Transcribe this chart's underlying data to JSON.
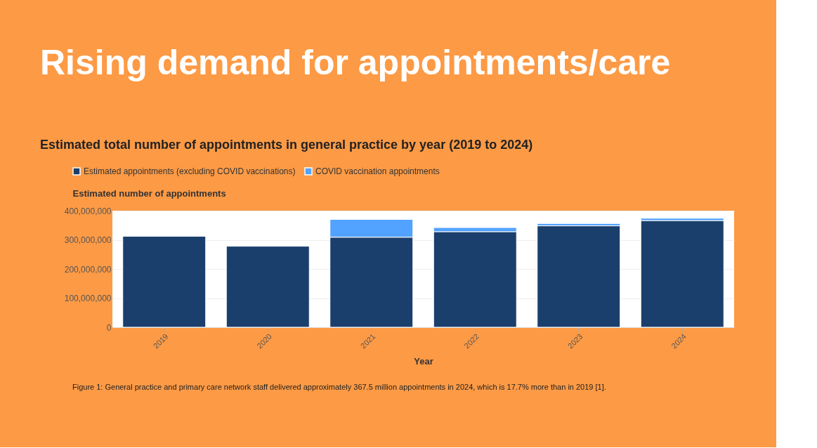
{
  "chart_data": {
    "type": "bar",
    "title": "Rising demand for appointments/care",
    "subtitle": "Estimated total number of appointments in general practice by year (2019 to 2024)",
    "xlabel": "Year",
    "ylabel": "Estimated number of appointments",
    "categories": [
      "2019",
      "2020",
      "2021",
      "2022",
      "2023",
      "2024"
    ],
    "series": [
      {
        "name": "Estimated appointments (excluding COVID vaccinations)",
        "color": "#1b3f6c",
        "values": [
          312000000,
          278000000,
          309000000,
          328000000,
          348000000,
          366000000
        ]
      },
      {
        "name": "COVID vaccination appointments",
        "color": "#52a2ff",
        "values": [
          null,
          null,
          61000000,
          14000000,
          8000000,
          8000000
        ]
      }
    ],
    "stacked": true,
    "ylim": [
      0,
      400000000
    ],
    "yticks": [
      0,
      {
        "value": 100000000,
        "label": "100,000,000"
      },
      {
        "value": 200000000,
        "label": "200,000,000"
      },
      {
        "value": 300000000,
        "label": "300,000,000"
      },
      {
        "value": 400000000,
        "label": "400,000,000"
      }
    ],
    "grid": "y",
    "legend": "top left",
    "annotations": [
      "Figure 1: General practice and primary care network staff delivered approximately 367.5 million appointments in 2024, which is 17.7% more than in 2019 [1]."
    ]
  }
}
